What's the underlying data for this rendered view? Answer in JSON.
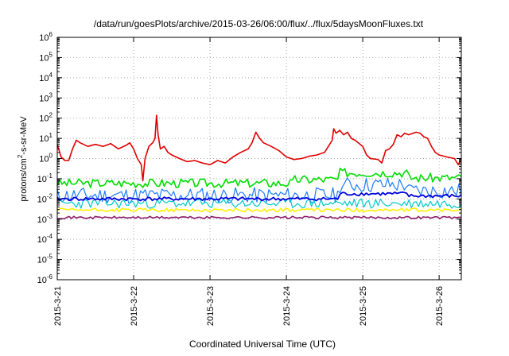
{
  "chart_data": {
    "type": "line",
    "title": "/data/run/goesPlots/archive/2015-03-26/06:00/flux/../flux/5daysMoonFluxes.txt",
    "xlabel": "Coordinated Universal Time (UTC)",
    "ylabel": {
      "pre": "protons/cm",
      "sup": "2",
      "post": "-s-sr-MeV"
    },
    "log_y": true,
    "grid": true,
    "ylim_exp": [
      -6,
      6
    ],
    "y_ticks": [
      {
        "base": "10",
        "exp": "-6",
        "value": -6
      },
      {
        "base": "10",
        "exp": "-5",
        "value": -5
      },
      {
        "base": "10",
        "exp": "-4",
        "value": -4
      },
      {
        "base": "10",
        "exp": "-3",
        "value": -3
      },
      {
        "base": "10",
        "exp": "-2",
        "value": -2
      },
      {
        "base": "10",
        "exp": "-1",
        "value": -1
      },
      {
        "base": "10",
        "exp": "0",
        "value": 0
      },
      {
        "base": "10",
        "exp": "1",
        "value": 1
      },
      {
        "base": "10",
        "exp": "2",
        "value": 2
      },
      {
        "base": "10",
        "exp": "3",
        "value": 3
      },
      {
        "base": "10",
        "exp": "4",
        "value": 4
      },
      {
        "base": "10",
        "exp": "5",
        "value": 5
      },
      {
        "base": "10",
        "exp": "6",
        "value": 6
      }
    ],
    "xlim_days": [
      0,
      5.29
    ],
    "x_ticks": [
      {
        "label": "2015-3-21",
        "value": 0
      },
      {
        "label": "2015-3-22",
        "value": 1
      },
      {
        "label": "2015-3-23",
        "value": 2
      },
      {
        "label": "2015-3-24",
        "value": 3
      },
      {
        "label": "2015-3-25",
        "value": 4
      },
      {
        "label": "2015-3-26",
        "value": 5
      }
    ],
    "series": [
      {
        "color": "#e00000",
        "width": 1.6,
        "points": [
          [
            0,
            5
          ],
          [
            0.05,
            1.2
          ],
          [
            0.1,
            0.8
          ],
          [
            0.15,
            0.8
          ],
          [
            0.2,
            3
          ],
          [
            0.25,
            8
          ],
          [
            0.3,
            6
          ],
          [
            0.4,
            4
          ],
          [
            0.5,
            5
          ],
          [
            0.6,
            4
          ],
          [
            0.7,
            5.5
          ],
          [
            0.8,
            3
          ],
          [
            0.9,
            4.5
          ],
          [
            0.95,
            6
          ],
          [
            1.0,
            3
          ],
          [
            1.05,
            1
          ],
          [
            1.1,
            0.5
          ],
          [
            1.12,
            0.08
          ],
          [
            1.15,
            1
          ],
          [
            1.2,
            4
          ],
          [
            1.25,
            6
          ],
          [
            1.28,
            10
          ],
          [
            1.3,
            140
          ],
          [
            1.32,
            15
          ],
          [
            1.35,
            3
          ],
          [
            1.4,
            4
          ],
          [
            1.45,
            2
          ],
          [
            1.5,
            1.5
          ],
          [
            1.6,
            1
          ],
          [
            1.7,
            0.7
          ],
          [
            1.8,
            0.8
          ],
          [
            1.9,
            0.6
          ],
          [
            2.0,
            0.5
          ],
          [
            2.1,
            0.8
          ],
          [
            2.2,
            0.6
          ],
          [
            2.3,
            1.2
          ],
          [
            2.4,
            2
          ],
          [
            2.5,
            3
          ],
          [
            2.55,
            6
          ],
          [
            2.6,
            20
          ],
          [
            2.65,
            10
          ],
          [
            2.7,
            6
          ],
          [
            2.8,
            4
          ],
          [
            2.9,
            2.5
          ],
          [
            3.0,
            1.2
          ],
          [
            3.1,
            0.9
          ],
          [
            3.2,
            1
          ],
          [
            3.3,
            1.3
          ],
          [
            3.4,
            1.5
          ],
          [
            3.5,
            2
          ],
          [
            3.55,
            4
          ],
          [
            3.6,
            8
          ],
          [
            3.62,
            30
          ],
          [
            3.65,
            18
          ],
          [
            3.7,
            25
          ],
          [
            3.75,
            15
          ],
          [
            3.8,
            20
          ],
          [
            3.85,
            10
          ],
          [
            3.9,
            8
          ],
          [
            4.0,
            4
          ],
          [
            4.05,
            1.5
          ],
          [
            4.1,
            1
          ],
          [
            4.2,
            0.9
          ],
          [
            4.25,
            0.6
          ],
          [
            4.3,
            2.5
          ],
          [
            4.35,
            3
          ],
          [
            4.4,
            5
          ],
          [
            4.45,
            15
          ],
          [
            4.5,
            12
          ],
          [
            4.55,
            18
          ],
          [
            4.6,
            15
          ],
          [
            4.7,
            20
          ],
          [
            4.75,
            18
          ],
          [
            4.8,
            12
          ],
          [
            4.85,
            10
          ],
          [
            4.9,
            4
          ],
          [
            4.95,
            2
          ],
          [
            5.0,
            1.5
          ],
          [
            5.1,
            1.2
          ],
          [
            5.2,
            1.0
          ],
          [
            5.25,
            0.5
          ],
          [
            5.29,
            1.0
          ]
        ]
      },
      {
        "color": "#00dd00",
        "width": 1.6,
        "base": 0.06,
        "noise": 0.45,
        "seed": 3,
        "bumps": [
          [
            3.1,
            3.7,
            0.09
          ],
          [
            3.7,
            4.6,
            0.2
          ],
          [
            4.6,
            5.29,
            0.11
          ]
        ]
      },
      {
        "color": "#1e7bff",
        "width": 1.2,
        "base": 0.015,
        "noise": 0.8,
        "seed": 11,
        "bumps": [
          [
            3.7,
            4.6,
            0.05
          ],
          [
            4.6,
            5.29,
            0.025
          ]
        ]
      },
      {
        "color": "#00c8c8",
        "width": 1.2,
        "base": 0.006,
        "noise": 0.5,
        "seed": 23,
        "bumps": []
      },
      {
        "color": "#0000dd",
        "width": 1.8,
        "base": 0.01,
        "noise": 0.18,
        "seed": 41,
        "bumps": [
          [
            3.7,
            4.6,
            0.018
          ],
          [
            4.6,
            5.29,
            0.014
          ]
        ]
      },
      {
        "color": "#ffee00",
        "width": 1.6,
        "base": 0.0028,
        "noise": 0.18,
        "seed": 57,
        "bumps": []
      },
      {
        "color": "#8b1a6b",
        "width": 1.6,
        "base": 0.0012,
        "noise": 0.12,
        "seed": 71,
        "bumps": []
      }
    ]
  }
}
